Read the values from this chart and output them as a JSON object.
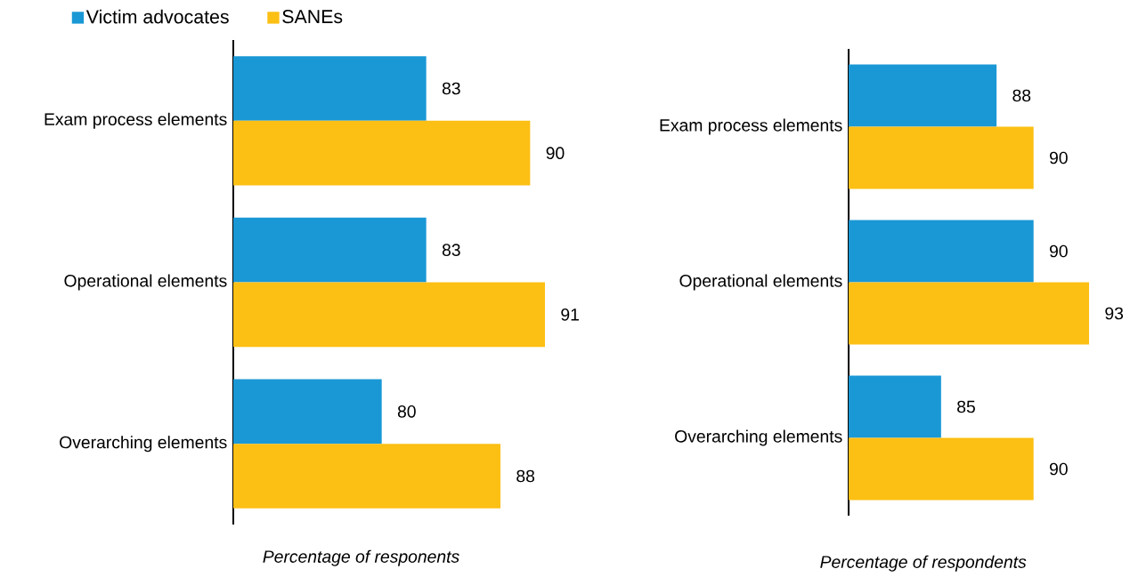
{
  "chart_data": [
    {
      "type": "bar",
      "orientation": "horizontal",
      "categories": [
        "Exam process elements",
        "Operational elements",
        "Overarching elements"
      ],
      "xlim": [
        70,
        91
      ],
      "xlabel": "Percentage of responents",
      "data_labels": true,
      "tick_labels": "y",
      "legend": "top left",
      "series": [
        {
          "name": "Victim advocates",
          "color": "#1a98d5",
          "values": [
            83,
            83,
            80
          ]
        },
        {
          "name": "SANEs",
          "color": "#fcbf14",
          "values": [
            90,
            91,
            88
          ]
        }
      ]
    },
    {
      "type": "bar",
      "orientation": "horizontal",
      "categories": [
        "Exam process elements",
        "Operational elements",
        "Overarching elements"
      ],
      "xlim": [
        80,
        93
      ],
      "xlabel": "Percentage of respondents",
      "data_labels": true,
      "tick_labels": "y",
      "series": [
        {
          "color": "#1a98d5",
          "values": [
            88,
            90,
            85
          ]
        },
        {
          "color": "#fcbf14",
          "values": [
            90,
            93,
            90
          ]
        }
      ]
    }
  ]
}
